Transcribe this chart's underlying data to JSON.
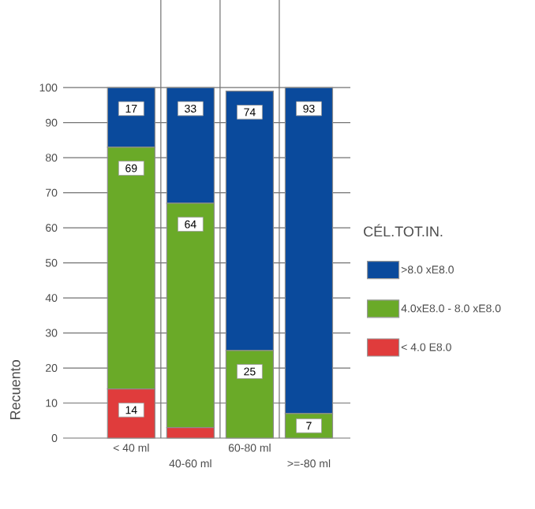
{
  "chart_data": {
    "type": "bar",
    "stacked": true,
    "ylabel": "Recuento",
    "legend_title": "CÉL.TOT.IN.",
    "legend": "right",
    "grid": true,
    "categories": [
      "< 40 ml",
      "40-60 ml",
      "60-80 ml",
      ">=-80 ml"
    ],
    "ylim": [
      0,
      125
    ],
    "yticks": [
      0,
      10,
      20,
      30,
      40,
      50,
      60,
      70,
      80,
      90,
      100
    ],
    "series": [
      {
        "name": "< 4.0 E8.0",
        "color": "#e03c3c",
        "values": [
          14,
          3,
          0,
          0
        ],
        "value_labels": [
          "14",
          null,
          null,
          null
        ]
      },
      {
        "name": "4.0xE8.0 - 8.0 xE8.0",
        "color": "#6aaa28",
        "values": [
          69,
          64,
          25,
          7
        ],
        "value_labels": [
          "69",
          "64",
          "25",
          "7"
        ]
      },
      {
        "name": ">8.0 xE8.0",
        "color": "#0a4a9c",
        "values": [
          17,
          33,
          74,
          93
        ],
        "value_labels": [
          "17",
          "33",
          "74",
          "93"
        ]
      }
    ]
  }
}
